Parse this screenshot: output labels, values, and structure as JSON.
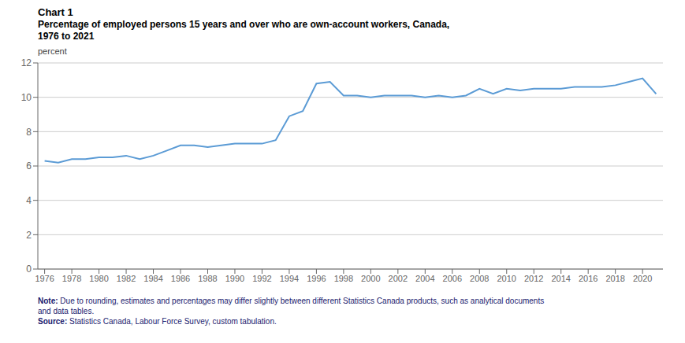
{
  "chart_data": {
    "type": "line",
    "title": "Chart 1",
    "subtitle": "Percentage of employed persons 15 years and over who are own-account workers, Canada,\n1976 to 2021",
    "y_label": "percent",
    "notes": [
      {
        "label": "Note:",
        "text": "Due to rounding, estimates and percentages may differ slightly between different Statistics Canada products, such as analytical documents\nand data tables."
      },
      {
        "label": "Source:",
        "text": "Statistics Canada, Labour Force Survey, custom tabulation."
      }
    ],
    "x": [
      1976,
      1977,
      1978,
      1979,
      1980,
      1981,
      1982,
      1983,
      1984,
      1985,
      1986,
      1987,
      1988,
      1989,
      1990,
      1991,
      1992,
      1993,
      1994,
      1995,
      1996,
      1997,
      1998,
      1999,
      2000,
      2001,
      2002,
      2003,
      2004,
      2005,
      2006,
      2007,
      2008,
      2009,
      2010,
      2011,
      2012,
      2013,
      2014,
      2015,
      2016,
      2017,
      2018,
      2019,
      2020,
      2021
    ],
    "values": [
      6.3,
      6.2,
      6.4,
      6.4,
      6.5,
      6.5,
      6.6,
      6.4,
      6.6,
      6.9,
      7.2,
      7.2,
      7.1,
      7.2,
      7.3,
      7.3,
      7.3,
      7.5,
      8.9,
      9.2,
      10.8,
      10.9,
      10.1,
      10.1,
      10.0,
      10.1,
      10.1,
      10.1,
      10.0,
      10.1,
      10.0,
      10.1,
      10.5,
      10.2,
      10.5,
      10.4,
      10.5,
      10.5,
      10.5,
      10.6,
      10.6,
      10.6,
      10.7,
      10.9,
      11.1,
      10.2
    ],
    "color": "#5b9bd5",
    "xlim": [
      1975.5,
      2021.5
    ],
    "xticks": [
      1976,
      1978,
      1980,
      1982,
      1984,
      1986,
      1988,
      1990,
      1992,
      1994,
      1996,
      1998,
      2000,
      2002,
      2004,
      2006,
      2008,
      2010,
      2012,
      2014,
      2016,
      2018,
      2020
    ],
    "ylim": [
      0,
      12
    ],
    "yticks": [
      0,
      2,
      4,
      6,
      8,
      10,
      12
    ],
    "grid": true
  }
}
